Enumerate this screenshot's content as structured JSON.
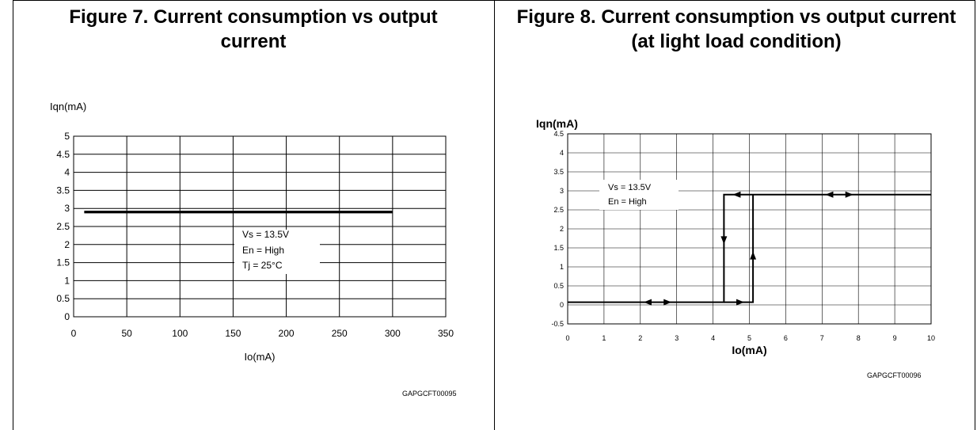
{
  "figures": [
    {
      "title": "Figure 7. Current consumption vs output current",
      "code": "GAPGCFT00095"
    },
    {
      "title": "Figure 8. Current consumption vs output current (at light load condition)",
      "code": "GAPGCFT00096"
    }
  ],
  "chart_data": [
    {
      "type": "line",
      "title": "Figure 7. Current consumption vs output current",
      "xlabel": "Io(mA)",
      "ylabel": "Iqn(mA)",
      "xlim": [
        0,
        350
      ],
      "ylim": [
        0,
        5
      ],
      "xticks": [
        0,
        50,
        100,
        150,
        200,
        250,
        300,
        350
      ],
      "yticks": [
        0,
        0.5,
        1,
        1.5,
        2,
        2.5,
        3,
        3.5,
        4,
        4.5,
        5
      ],
      "grid": true,
      "series": [
        {
          "x": [
            10,
            300
          ],
          "y": [
            2.9,
            2.9
          ]
        }
      ],
      "annotations": [
        "Vs = 13.5V",
        "En = High",
        "Tj = 25°C"
      ]
    },
    {
      "type": "line",
      "title": "Figure 8. Current consumption vs output current (at light load condition)",
      "xlabel": "Io(mA)",
      "ylabel": "Iqn(mA)",
      "xlim": [
        0,
        10
      ],
      "ylim": [
        -0.5,
        4.5
      ],
      "xticks": [
        0,
        1,
        2,
        3,
        4,
        5,
        6,
        7,
        8,
        9,
        10
      ],
      "yticks": [
        -0.5,
        0,
        0.5,
        1,
        1.5,
        2,
        2.5,
        3,
        3.5,
        4,
        4.5
      ],
      "grid": true,
      "series": [
        {
          "x": [
            0,
            4.3,
            4.3,
            10
          ],
          "y": [
            0.07,
            0.07,
            2.9,
            2.9
          ]
        },
        {
          "x": [
            4.3,
            5.1,
            5.1
          ],
          "y": [
            0.07,
            0.07,
            2.9
          ]
        }
      ],
      "annotations": [
        "Vs = 13.5V",
        "En = High"
      ]
    }
  ]
}
